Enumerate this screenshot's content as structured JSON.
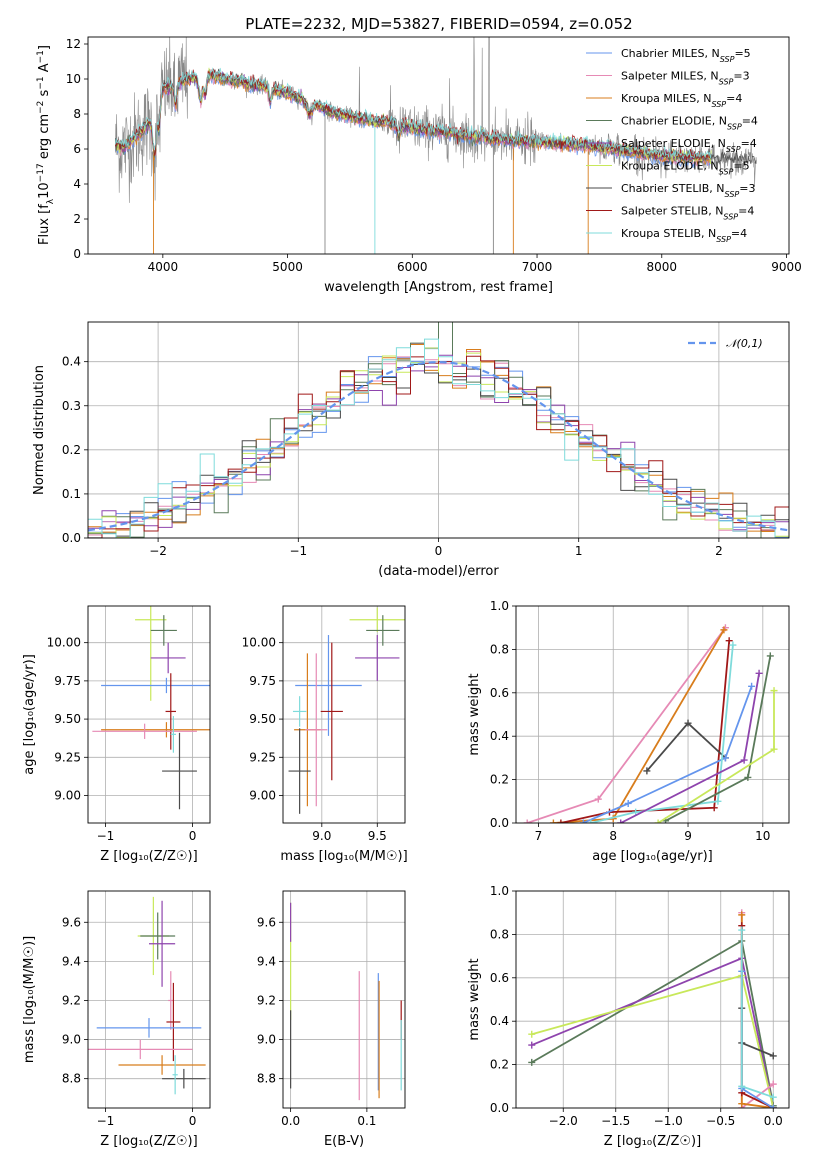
{
  "title": "PLATE=2232, MJD=53827, FIBERID=0594, z=0.052",
  "colors": {
    "cornflower": "#6495ed",
    "pink": "#e68ab5",
    "orange": "#d87d1c",
    "green_gray": "#5a7a5a",
    "purple": "#8e44ad",
    "lime": "#c8e85a",
    "dark_gray": "#4a4a4a",
    "dark_red": "#a01818",
    "cyan": "#7fdbdb",
    "raw_spectrum": "#888888",
    "grid": "#b0b0b0"
  },
  "chart_data": [
    {
      "id": "spectrum",
      "type": "line",
      "title": "PLATE=2232, MJD=53827, FIBERID=0594, z=0.052",
      "xlabel": "wavelength [Angstrom, rest frame]",
      "ylabel_parts": [
        "Flux [f",
        "λ",
        "10",
        "−17",
        " erg cm",
        "−2",
        " s",
        "−1",
        " A",
        "−1",
        "]"
      ],
      "xlim": [
        3400,
        9020
      ],
      "ylim": [
        0,
        12.4
      ],
      "xticks": [
        4000,
        5000,
        6000,
        7000,
        8000,
        9000
      ],
      "yticks": [
        0,
        2,
        4,
        6,
        8,
        10,
        12
      ],
      "continuum": [
        [
          3620,
          7.0
        ],
        [
          3700,
          6.9
        ],
        [
          3800,
          7.6
        ],
        [
          3900,
          8.3
        ],
        [
          4000,
          9.4
        ],
        [
          4100,
          9.7
        ],
        [
          4200,
          10.0
        ],
        [
          4300,
          10.1
        ],
        [
          4400,
          10.2
        ],
        [
          4500,
          10.0
        ],
        [
          4600,
          9.9
        ],
        [
          4700,
          9.7
        ],
        [
          4800,
          9.6
        ],
        [
          4900,
          9.4
        ],
        [
          5000,
          9.2
        ],
        [
          5200,
          8.6
        ],
        [
          5400,
          8.0
        ],
        [
          5600,
          7.7
        ],
        [
          5800,
          7.5
        ],
        [
          6000,
          7.2
        ],
        [
          6200,
          7.0
        ],
        [
          6400,
          6.8
        ],
        [
          6600,
          6.6
        ],
        [
          6800,
          6.5
        ],
        [
          7000,
          6.4
        ],
        [
          7200,
          6.3
        ],
        [
          7400,
          6.2
        ],
        [
          7600,
          6.0
        ],
        [
          7800,
          5.8
        ],
        [
          8000,
          5.6
        ],
        [
          8200,
          5.5
        ],
        [
          8400,
          5.5
        ],
        [
          8600,
          5.4
        ],
        [
          8760,
          5.3
        ]
      ],
      "legend_items": [
        {
          "name": "Chabrier MILES, N",
          "sub": "SSP",
          "tail": "=5",
          "color": "#6495ed"
        },
        {
          "name": "Salpeter MILES, N",
          "sub": "SSP",
          "tail": "=3",
          "color": "#e68ab5"
        },
        {
          "name": "Kroupa MILES, N",
          "sub": "SSP",
          "tail": "=4",
          "color": "#d87d1c"
        },
        {
          "name": "Chabrier ELODIE, N",
          "sub": "SSP",
          "tail": "=4",
          "color": "#5a7a5a"
        },
        {
          "name": "Salpeter ELODIE, N",
          "sub": "SSP",
          "tail": "=4",
          "color": "#8e44ad"
        },
        {
          "name": "Kroupa ELODIE, N",
          "sub": "SSP",
          "tail": "=5",
          "color": "#c8e85a"
        },
        {
          "name": "Chabrier STELIB, N",
          "sub": "SSP",
          "tail": "=3",
          "color": "#4a4a4a"
        },
        {
          "name": "Salpeter STELIB, N",
          "sub": "SSP",
          "tail": "=4",
          "color": "#a01818"
        },
        {
          "name": "Kroupa STELIB, N",
          "sub": "SSP",
          "tail": "=4",
          "color": "#7fdbdb"
        }
      ],
      "legend_placement": "top-right"
    },
    {
      "id": "residuals",
      "type": "step",
      "xlabel": "(data-model)/error",
      "ylabel": "Normed distribution",
      "xlim": [
        -2.5,
        2.5
      ],
      "ylim": [
        0,
        0.49
      ],
      "xticks": [
        -2,
        -1,
        0,
        1,
        2
      ],
      "yticks": [
        0.0,
        0.1,
        0.2,
        0.3,
        0.4
      ],
      "bin_width": 0.1,
      "gaussian_label": "𝒩(0,1)",
      "legend_placement": "top-right",
      "grid": true
    },
    {
      "id": "age_vs_Z",
      "type": "errorbar",
      "xlabel": "Z [log₁₀(Z/Z☉)]",
      "ylabel": "age  [log₁₀(age/yr)]",
      "xlim": [
        -1.2,
        0.2
      ],
      "ylim": [
        8.82,
        10.24
      ],
      "xticks": [
        -1,
        0
      ],
      "yticks": [
        9.0,
        9.25,
        9.5,
        9.75,
        10.0
      ],
      "points": [
        {
          "x": -0.48,
          "y": 10.15,
          "xerr": 0.18,
          "yerr": 0.53,
          "color": "#c8e85a"
        },
        {
          "x": -0.33,
          "y": 10.08,
          "xerr": 0.15,
          "yerr": 0.1,
          "color": "#5a7a5a"
        },
        {
          "x": -0.28,
          "y": 9.9,
          "xerr": 0.2,
          "yerr": 0.1,
          "color": "#8e44ad"
        },
        {
          "x": -0.3,
          "y": 9.72,
          "xerr": 0.75,
          "yerr": 0.05,
          "color": "#6495ed"
        },
        {
          "x": -0.25,
          "y": 9.55,
          "xerr": 0.06,
          "yerr": 0.25,
          "color": "#a01818"
        },
        {
          "x": -0.3,
          "y": 9.43,
          "xerr": 0.75,
          "yerr": 0.05,
          "color": "#d87d1c"
        },
        {
          "x": -0.55,
          "y": 9.42,
          "xerr": 0.6,
          "yerr": 0.05,
          "color": "#e68ab5"
        },
        {
          "x": -0.22,
          "y": 9.4,
          "xerr": 0.03,
          "yerr": 0.12,
          "color": "#7fdbdb"
        },
        {
          "x": -0.15,
          "y": 9.16,
          "xerr": 0.2,
          "yerr": 0.25,
          "color": "#4a4a4a"
        }
      ]
    },
    {
      "id": "age_vs_mass",
      "type": "errorbar",
      "xlabel": "mass [log₁₀(M/M☉)]",
      "xlim": [
        8.65,
        9.75
      ],
      "ylim": [
        8.82,
        10.24
      ],
      "xticks": [
        9.0,
        9.5
      ],
      "yticks": [
        9.0,
        9.25,
        9.5,
        9.75,
        10.0
      ],
      "points": [
        {
          "x": 9.5,
          "y": 10.15,
          "xerr": 0.25,
          "yerr": 0.08,
          "color": "#c8e85a"
        },
        {
          "x": 9.55,
          "y": 10.08,
          "xerr": 0.15,
          "yerr": 0.1,
          "color": "#5a7a5a"
        },
        {
          "x": 9.5,
          "y": 9.9,
          "xerr": 0.2,
          "yerr": 0.15,
          "color": "#8e44ad"
        },
        {
          "x": 9.06,
          "y": 9.72,
          "xerr": 0.3,
          "yerr": 0.33,
          "color": "#6495ed"
        },
        {
          "x": 9.09,
          "y": 9.55,
          "xerr": 0.1,
          "yerr": 0.45,
          "color": "#a01818"
        },
        {
          "x": 8.87,
          "y": 9.43,
          "xerr": 0.12,
          "yerr": 0.5,
          "color": "#d87d1c"
        },
        {
          "x": 8.95,
          "y": 9.43,
          "xerr": 0.1,
          "yerr": 0.5,
          "color": "#e68ab5"
        },
        {
          "x": 8.8,
          "y": 9.55,
          "xerr": 0.06,
          "yerr": 0.1,
          "color": "#7fdbdb"
        },
        {
          "x": 8.8,
          "y": 9.16,
          "xerr": 0.1,
          "yerr": 0.28,
          "color": "#4a4a4a"
        }
      ]
    },
    {
      "id": "mass_weight_vs_age",
      "type": "line",
      "xlabel": "age  [log₁₀(age/yr)]",
      "ylabel": "mass weight",
      "xlim": [
        6.7,
        10.35
      ],
      "ylim": [
        0,
        1.0
      ],
      "xticks": [
        7,
        8,
        9,
        10
      ],
      "yticks": [
        0.0,
        0.2,
        0.4,
        0.6,
        0.8,
        1.0
      ],
      "grid": true,
      "series": [
        {
          "color": "#e68ab5",
          "points": [
            [
              6.85,
              0.0
            ],
            [
              7.8,
              0.11
            ],
            [
              9.5,
              0.9
            ]
          ]
        },
        {
          "color": "#d87d1c",
          "points": [
            [
              7.2,
              0.0
            ],
            [
              8.0,
              0.02
            ],
            [
              9.48,
              0.89
            ]
          ]
        },
        {
          "color": "#a01818",
          "points": [
            [
              7.3,
              0.0
            ],
            [
              7.95,
              0.05
            ],
            [
              9.35,
              0.07
            ],
            [
              9.55,
              0.84
            ]
          ]
        },
        {
          "color": "#4a4a4a",
          "points": [
            [
              8.45,
              0.24
            ],
            [
              9.0,
              0.46
            ],
            [
              9.5,
              0.3
            ]
          ]
        },
        {
          "color": "#6495ed",
          "points": [
            [
              7.6,
              0.0
            ],
            [
              8.2,
              0.09
            ],
            [
              9.5,
              0.3
            ],
            [
              9.85,
              0.63
            ]
          ]
        },
        {
          "color": "#7fdbdb",
          "points": [
            [
              7.7,
              0.0
            ],
            [
              8.3,
              0.05
            ],
            [
              9.4,
              0.1
            ],
            [
              9.6,
              0.82
            ]
          ]
        },
        {
          "color": "#8e44ad",
          "points": [
            [
              8.1,
              0.0
            ],
            [
              9.75,
              0.29
            ],
            [
              9.95,
              0.69
            ]
          ]
        },
        {
          "color": "#5a7a5a",
          "points": [
            [
              8.7,
              0.01
            ],
            [
              9.8,
              0.21
            ],
            [
              10.1,
              0.77
            ]
          ]
        },
        {
          "color": "#c8e85a",
          "points": [
            [
              8.6,
              0.0
            ],
            [
              10.15,
              0.34
            ],
            [
              10.15,
              0.61
            ]
          ]
        }
      ]
    },
    {
      "id": "mass_vs_Z",
      "type": "errorbar",
      "xlabel": "Z [log₁₀(Z/Z☉)]",
      "ylabel": "mass [log₁₀(M/M☉)]",
      "xlim": [
        -1.2,
        0.2
      ],
      "ylim": [
        8.65,
        9.76
      ],
      "xticks": [
        -1,
        0
      ],
      "yticks": [
        8.8,
        9.0,
        9.2,
        9.4,
        9.6
      ],
      "points": [
        {
          "x": -0.45,
          "y": 9.53,
          "xerr": 0.18,
          "yerr": 0.2,
          "color": "#c8e85a"
        },
        {
          "x": -0.4,
          "y": 9.53,
          "xerr": 0.2,
          "yerr": 0.12,
          "color": "#5a7a5a"
        },
        {
          "x": -0.35,
          "y": 9.49,
          "xerr": 0.15,
          "yerr": 0.22,
          "color": "#8e44ad"
        },
        {
          "x": -0.25,
          "y": 9.2,
          "xerr": 0.03,
          "yerr": 0.15,
          "color": "#e68ab5"
        },
        {
          "x": -0.22,
          "y": 9.09,
          "xerr": 0.08,
          "yerr": 0.2,
          "color": "#a01818"
        },
        {
          "x": -0.5,
          "y": 9.06,
          "xerr": 0.6,
          "yerr": 0.05,
          "color": "#6495ed"
        },
        {
          "x": -0.6,
          "y": 8.95,
          "xerr": 0.6,
          "yerr": 0.05,
          "color": "#e68ab5"
        },
        {
          "x": -0.35,
          "y": 8.87,
          "xerr": 0.5,
          "yerr": 0.05,
          "color": "#d87d1c"
        },
        {
          "x": -0.1,
          "y": 8.8,
          "xerr": 0.25,
          "yerr": 0.05,
          "color": "#4a4a4a"
        },
        {
          "x": -0.2,
          "y": 8.82,
          "xerr": 0.03,
          "yerr": 0.1,
          "color": "#7fdbdb"
        }
      ]
    },
    {
      "id": "mass_vs_EBV",
      "type": "errorbar",
      "xlabel": "E(B-V)",
      "xlim": [
        -0.01,
        0.15
      ],
      "ylim": [
        8.65,
        9.76
      ],
      "xticks": [
        0.0,
        0.1
      ],
      "yticks": [
        8.8,
        9.0,
        9.2,
        9.4,
        9.6
      ],
      "points": [
        {
          "x": 0.0,
          "y": 9.4,
          "xerr": 0,
          "yerr": 0.3,
          "color": "#c8e85a"
        },
        {
          "x": 0.0,
          "y": 9.6,
          "xerr": 0,
          "yerr": 0.1,
          "color": "#8e44ad"
        },
        {
          "x": 0.0,
          "y": 8.95,
          "xerr": 0,
          "yerr": 0.2,
          "color": "#4a4a4a"
        },
        {
          "x": 0.09,
          "y": 9.02,
          "xerr": 0,
          "yerr": 0.33,
          "color": "#e68ab5"
        },
        {
          "x": 0.115,
          "y": 9.04,
          "xerr": 0,
          "yerr": 0.3,
          "color": "#6495ed"
        },
        {
          "x": 0.116,
          "y": 9.0,
          "xerr": 0,
          "yerr": 0.3,
          "color": "#d87d1c"
        },
        {
          "x": 0.145,
          "y": 9.1,
          "xerr": 0,
          "yerr": 0.1,
          "color": "#a01818"
        },
        {
          "x": 0.145,
          "y": 8.92,
          "xerr": 0,
          "yerr": 0.18,
          "color": "#7fdbdb"
        }
      ]
    },
    {
      "id": "mass_weight_vs_Z",
      "type": "line",
      "xlabel": "Z [log₁₀(Z/Z☉)]",
      "ylabel": "mass weight",
      "xlim": [
        -2.45,
        0.15
      ],
      "ylim": [
        0,
        1.0
      ],
      "xticks": [
        -2.0,
        -1.5,
        -1.0,
        -0.5,
        0.0
      ],
      "yticks": [
        0.0,
        0.2,
        0.4,
        0.6,
        0.8,
        1.0
      ],
      "grid": true,
      "series": [
        {
          "color": "#5a7a5a",
          "points": [
            [
              -2.3,
              0.21
            ],
            [
              -0.3,
              0.77
            ],
            [
              0.0,
              0.01
            ]
          ]
        },
        {
          "color": "#8e44ad",
          "points": [
            [
              -2.3,
              0.29
            ],
            [
              -0.3,
              0.69
            ],
            [
              0.0,
              0.0
            ]
          ]
        },
        {
          "color": "#c8e85a",
          "points": [
            [
              -2.3,
              0.34
            ],
            [
              -0.3,
              0.61
            ],
            [
              0.0,
              0.0
            ]
          ]
        },
        {
          "color": "#e68ab5",
          "points": [
            [
              -0.3,
              0.9
            ],
            [
              -0.3,
              0.0
            ],
            [
              0.0,
              0.11
            ]
          ]
        },
        {
          "color": "#d87d1c",
          "points": [
            [
              -0.3,
              0.89
            ],
            [
              -0.3,
              0.02
            ],
            [
              0.0,
              0.0
            ]
          ]
        },
        {
          "color": "#a01818",
          "points": [
            [
              -0.3,
              0.84
            ],
            [
              -0.3,
              0.07
            ],
            [
              0.0,
              0.0
            ]
          ]
        },
        {
          "color": "#4a4a4a",
          "points": [
            [
              -0.3,
              0.46
            ],
            [
              -0.3,
              0.3
            ],
            [
              0.0,
              0.24
            ]
          ]
        },
        {
          "color": "#6495ed",
          "points": [
            [
              -0.3,
              0.63
            ],
            [
              -0.3,
              0.09
            ],
            [
              0.0,
              0.0
            ]
          ]
        },
        {
          "color": "#7fdbdb",
          "points": [
            [
              -0.3,
              0.82
            ],
            [
              -0.3,
              0.1
            ],
            [
              0.0,
              0.05
            ]
          ]
        }
      ]
    }
  ]
}
